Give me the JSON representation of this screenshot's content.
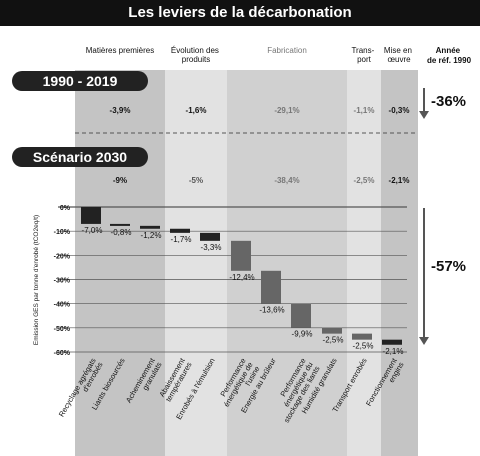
{
  "header": {
    "title": "Les leviers de la décarbonation",
    "ref_year_lines": [
      "Année",
      "de réf. 1990"
    ]
  },
  "groups": [
    {
      "label_lines": [
        "Matières premières"
      ]
    },
    {
      "label_lines": [
        "Évolution des",
        "produits"
      ]
    },
    {
      "label_lines": [
        "Fabrication"
      ]
    },
    {
      "label_lines": [
        "Trans-",
        "port"
      ]
    },
    {
      "label_lines": [
        "Mise en",
        "œuvre"
      ]
    }
  ],
  "period_1990_2019": {
    "label": "1990 - 2019",
    "values": [
      "-3,9%",
      "-1,6%",
      "-29,1%",
      "-1,1%",
      "-0,3%"
    ],
    "total": "-36%"
  },
  "scenario_2030": {
    "label": "Scénario 2030",
    "values": [
      "-9%",
      "-5%",
      "-38,4%",
      "-2,5%",
      "-2,1%"
    ],
    "total": "-57%"
  },
  "colors": {
    "bar_dark": "#222222",
    "bar_mid": "#666666",
    "grid": "#555555"
  },
  "chart_data": {
    "type": "bar",
    "ylabel": "Emission GES par tonne d'enrobé (tCO2eq/t)",
    "ylim": [
      -60,
      0
    ],
    "yticks": [
      "0%",
      "-10%",
      "-20%",
      "-30%",
      "-40%",
      "-50%",
      "-60%"
    ],
    "categories": [
      "Recyclage agrégats d'enrobés",
      "Liants biosourcés",
      "Acheminement granulats",
      "Abaissement températures",
      "Enrobés à l'émulsion",
      "Performance énergétique de l'usine",
      "Energie au brûleur",
      "Performance énergétique du stockage des liants",
      "Humidité granulats",
      "Transport enrobés",
      "Fonctionnement engins"
    ],
    "values": [
      -7.0,
      -0.8,
      -1.2,
      -1.7,
      -3.3,
      -12.4,
      -13.6,
      -9.9,
      -2.5,
      -2.5,
      -2.1
    ],
    "labels": [
      "-7,0%",
      "-0,8%",
      "-1,2%",
      "-1,7%",
      "-3,3%",
      "-12,4%",
      "-13,6%",
      "-9,9%",
      "-2,5%",
      "-2,5%",
      "-2,1%"
    ],
    "bar_shade": [
      "dark",
      "dark",
      "dark",
      "dark",
      "dark",
      "mid",
      "mid",
      "mid",
      "mid",
      "mid",
      "dark"
    ]
  }
}
